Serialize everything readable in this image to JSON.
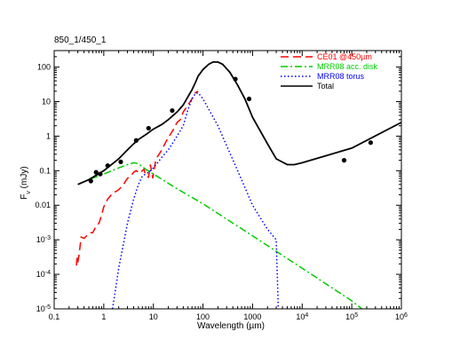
{
  "chart_data": {
    "type": "line",
    "title": "850_1/450_1",
    "xlabel": "Wavelength (µm)",
    "ylabel": "Fν (mJy)",
    "xscale": "log",
    "yscale": "log",
    "xlim": [
      0.1,
      1000000
    ],
    "ylim": [
      1e-05,
      300
    ],
    "x_ticks": [
      {
        "v": 0.1,
        "label": "0.1"
      },
      {
        "v": 1,
        "label": "1"
      },
      {
        "v": 10,
        "label": "10"
      },
      {
        "v": 100,
        "label": "100"
      },
      {
        "v": 1000,
        "label": "1000"
      },
      {
        "v": 10000,
        "label": "10",
        "sup": "4"
      },
      {
        "v": 100000,
        "label": "10",
        "sup": "5"
      },
      {
        "v": 1000000,
        "label": "10",
        "sup": "6"
      }
    ],
    "y_ticks": [
      {
        "v": 1e-05,
        "label": "10",
        "sup": "-5"
      },
      {
        "v": 0.0001,
        "label": "10",
        "sup": "-4"
      },
      {
        "v": 0.001,
        "label": "10",
        "sup": "-3"
      },
      {
        "v": 0.01,
        "label": "0.01"
      },
      {
        "v": 0.1,
        "label": "0.1"
      },
      {
        "v": 1,
        "label": "1"
      },
      {
        "v": 10,
        "label": "10"
      },
      {
        "v": 100,
        "label": "100"
      }
    ],
    "legend_position": "top-right",
    "series": [
      {
        "name": "CE01 @450µm",
        "color": "#ff0000",
        "style": "dashed",
        "points": [
          [
            0.28,
            0.00018
          ],
          [
            0.29,
            0.0003
          ],
          [
            0.3,
            0.00022
          ],
          [
            0.32,
            0.0004
          ],
          [
            0.35,
            0.0012
          ],
          [
            0.4,
            0.0011
          ],
          [
            0.45,
            0.0013
          ],
          [
            0.5,
            0.0014
          ],
          [
            0.55,
            0.0016
          ],
          [
            0.6,
            0.0016
          ],
          [
            0.7,
            0.0025
          ],
          [
            0.8,
            0.003
          ],
          [
            0.9,
            0.005
          ],
          [
            1.0,
            0.009
          ],
          [
            1.2,
            0.015
          ],
          [
            1.5,
            0.022
          ],
          [
            2,
            0.028
          ],
          [
            2.5,
            0.04
          ],
          [
            3,
            0.06
          ],
          [
            3.5,
            0.07
          ],
          [
            4,
            0.09
          ],
          [
            4.5,
            0.1
          ],
          [
            5,
            0.09
          ],
          [
            5.5,
            0.085
          ],
          [
            6,
            0.1
          ],
          [
            6.5,
            0.11
          ],
          [
            7,
            0.07
          ],
          [
            8,
            0.065
          ],
          [
            8.7,
            0.15
          ],
          [
            9.7,
            0.06
          ],
          [
            11,
            0.18
          ],
          [
            12,
            0.25
          ],
          [
            14,
            0.35
          ],
          [
            16,
            0.5
          ],
          [
            18,
            0.7
          ],
          [
            20,
            0.9
          ],
          [
            25,
            1.5
          ],
          [
            30,
            2.5
          ],
          [
            35,
            3
          ],
          [
            40,
            5
          ],
          [
            50,
            8
          ],
          [
            60,
            12
          ],
          [
            70,
            18
          ],
          [
            80,
            20
          ]
        ]
      },
      {
        "name": "MRR08 acc. disk",
        "color": "#00cc00",
        "style": "dashdot",
        "points": [
          [
            0.3,
            0.04
          ],
          [
            0.5,
            0.055
          ],
          [
            1,
            0.08
          ],
          [
            2,
            0.12
          ],
          [
            3,
            0.15
          ],
          [
            4,
            0.17
          ],
          [
            5,
            0.16
          ],
          [
            7,
            0.11
          ],
          [
            10,
            0.08
          ],
          [
            30,
            0.03
          ],
          [
            100,
            0.011
          ],
          [
            1000,
            0.0013
          ],
          [
            10000,
            0.00015
          ],
          [
            100000,
            1.7e-05
          ],
          [
            160000,
            1e-05
          ]
        ]
      },
      {
        "name": "MRR08 torus",
        "color": "#0000ff",
        "style": "dotted",
        "points": [
          [
            1.5,
            1e-05
          ],
          [
            2,
            0.00015
          ],
          [
            3,
            0.003
          ],
          [
            4,
            0.015
          ],
          [
            5,
            0.04
          ],
          [
            6,
            0.07
          ],
          [
            8,
            0.09
          ],
          [
            10,
            0.12
          ],
          [
            15,
            0.25
          ],
          [
            20,
            0.4
          ],
          [
            30,
            1.0
          ],
          [
            40,
            2.0
          ],
          [
            50,
            6
          ],
          [
            60,
            12
          ],
          [
            70,
            17
          ],
          [
            80,
            18
          ],
          [
            100,
            12
          ],
          [
            200,
            2
          ],
          [
            500,
            0.1
          ],
          [
            1000,
            0.01
          ],
          [
            2000,
            0.002
          ],
          [
            3000,
            0.001
          ],
          [
            3300,
            1e-05
          ]
        ]
      },
      {
        "name": "Total",
        "color": "#000000",
        "style": "solid",
        "points": [
          [
            0.3,
            0.04
          ],
          [
            0.5,
            0.055
          ],
          [
            1,
            0.1
          ],
          [
            2,
            0.22
          ],
          [
            3,
            0.4
          ],
          [
            4,
            0.6
          ],
          [
            5,
            0.8
          ],
          [
            7,
            1.1
          ],
          [
            10,
            1.6
          ],
          [
            15,
            2.2
          ],
          [
            20,
            3
          ],
          [
            30,
            5
          ],
          [
            40,
            8
          ],
          [
            50,
            14
          ],
          [
            60,
            22
          ],
          [
            70,
            35
          ],
          [
            80,
            55
          ],
          [
            100,
            85
          ],
          [
            130,
            120
          ],
          [
            160,
            140
          ],
          [
            200,
            140
          ],
          [
            250,
            120
          ],
          [
            350,
            70
          ],
          [
            500,
            30
          ],
          [
            700,
            12
          ],
          [
            1000,
            3.5
          ],
          [
            2000,
            0.6
          ],
          [
            3000,
            0.22
          ],
          [
            5000,
            0.15
          ],
          [
            7000,
            0.15
          ],
          [
            10000,
            0.17
          ],
          [
            100000,
            0.45
          ],
          [
            1000000,
            2.5
          ]
        ]
      }
    ],
    "observed_points": {
      "color": "#000000",
      "points": [
        [
          0.55,
          0.05
        ],
        [
          0.7,
          0.09
        ],
        [
          0.85,
          0.08
        ],
        [
          1.2,
          0.14
        ],
        [
          2.2,
          0.18
        ],
        [
          4.5,
          0.75
        ],
        [
          8,
          1.7
        ],
        [
          24,
          5.5
        ],
        [
          450,
          45
        ],
        [
          850,
          12
        ],
        [
          70000,
          0.2
        ],
        [
          240000,
          0.65
        ]
      ]
    }
  }
}
